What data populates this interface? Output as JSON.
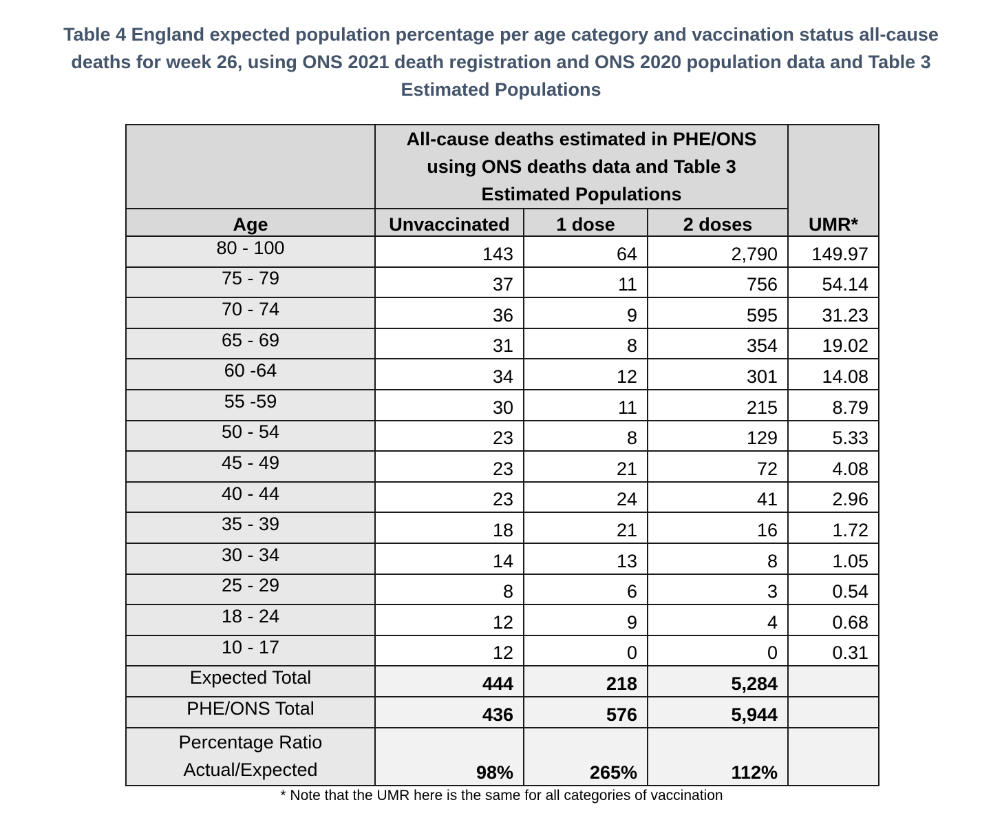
{
  "caption": {
    "line1": "Table 4 England expected population percentage per age category and vaccination status all-cause",
    "line2": "deaths for week 26, using ONS 2021 death registration and ONS 2020 population data and Table 3",
    "line3": "Estimated Populations"
  },
  "header": {
    "group_label": "All-cause deaths estimated in PHE/ONS using ONS deaths data and Table 3 Estimated Populations",
    "umr_label": "UMR*",
    "age_label": "Age",
    "unvaccinated_label": "Unvaccinated",
    "one_dose_label": "1 dose",
    "two_doses_label": "2 doses"
  },
  "rows": [
    {
      "age": "80 - 100",
      "unvaccinated": "143",
      "one_dose": "64",
      "two_doses": "2,790",
      "umr": "149.97"
    },
    {
      "age": "75 - 79",
      "unvaccinated": "37",
      "one_dose": "11",
      "two_doses": "756",
      "umr": "54.14"
    },
    {
      "age": "70 - 74",
      "unvaccinated": "36",
      "one_dose": "9",
      "two_doses": "595",
      "umr": "31.23"
    },
    {
      "age": "65 - 69",
      "unvaccinated": "31",
      "one_dose": "8",
      "two_doses": "354",
      "umr": "19.02"
    },
    {
      "age": "60 -64",
      "unvaccinated": "34",
      "one_dose": "12",
      "two_doses": "301",
      "umr": "14.08"
    },
    {
      "age": "55 -59",
      "unvaccinated": "30",
      "one_dose": "11",
      "two_doses": "215",
      "umr": "8.79"
    },
    {
      "age": "50 - 54",
      "unvaccinated": "23",
      "one_dose": "8",
      "two_doses": "129",
      "umr": "5.33"
    },
    {
      "age": "45 - 49",
      "unvaccinated": "23",
      "one_dose": "21",
      "two_doses": "72",
      "umr": "4.08"
    },
    {
      "age": "40 - 44",
      "unvaccinated": "23",
      "one_dose": "24",
      "two_doses": "41",
      "umr": "2.96"
    },
    {
      "age": "35 - 39",
      "unvaccinated": "18",
      "one_dose": "21",
      "two_doses": "16",
      "umr": "1.72"
    },
    {
      "age": "30 - 34",
      "unvaccinated": "14",
      "one_dose": "13",
      "two_doses": "8",
      "umr": "1.05"
    },
    {
      "age": "25 - 29",
      "unvaccinated": "8",
      "one_dose": "6",
      "two_doses": "3",
      "umr": "0.54"
    },
    {
      "age": "18 - 24",
      "unvaccinated": "12",
      "one_dose": "9",
      "two_doses": "4",
      "umr": "0.68"
    },
    {
      "age": "10 - 17",
      "unvaccinated": "12",
      "one_dose": "0",
      "two_doses": "0",
      "umr": "0.31"
    }
  ],
  "expected_total": {
    "label": "Expected Total",
    "unvaccinated": "444",
    "one_dose": "218",
    "two_doses": "5,284"
  },
  "phe_ons_total": {
    "label": "PHE/ONS Total",
    "unvaccinated": "436",
    "one_dose": "576",
    "two_doses": "5,944"
  },
  "percentage_ratio": {
    "label_line1": "Percentage Ratio",
    "label_line2": "Actual/Expected",
    "unvaccinated": "98%",
    "one_dose": "265%",
    "two_doses": "112%"
  },
  "footnote": "* Note that the UMR here is the same for all categories of vaccination",
  "colors": {
    "caption": "#44546a",
    "header_fill": "#d9d9d9",
    "age_fill": "#e8e8e8",
    "total_fill": "#f2f2f2",
    "border": "#1a1a1a"
  }
}
